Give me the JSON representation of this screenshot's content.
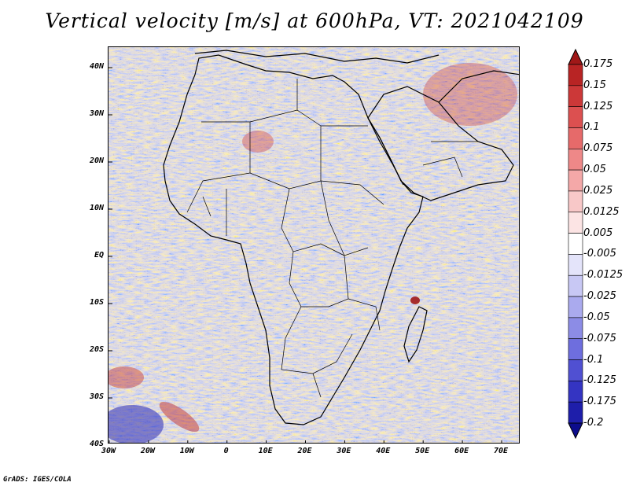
{
  "title": "Vertical velocity [m/s] at 600hPa, VT: 2021042109",
  "footer": "GrADS: IGES/COLA",
  "map": {
    "variable": "Vertical velocity",
    "units": "m/s",
    "level": "600hPa",
    "valid_time": "2021042109",
    "region": "Africa and Arabian Peninsula",
    "lon_range": [
      -30,
      75
    ],
    "lat_range": [
      -40,
      45
    ]
  },
  "lat_labels": [
    "40N",
    "30N",
    "20N",
    "10N",
    "EQ",
    "10S",
    "20S",
    "30S",
    "40S"
  ],
  "lon_labels": [
    "30W",
    "20W",
    "10W",
    "0",
    "10E",
    "20E",
    "30E",
    "40E",
    "50E",
    "60E",
    "70E"
  ],
  "colorbar": {
    "labels": [
      "0.175",
      "0.15",
      "0.125",
      "0.1",
      "0.075",
      "0.05",
      "0.025",
      "0.0125",
      "0.005",
      "-0.005",
      "-0.0125",
      "-0.025",
      "-0.05",
      "-0.075",
      "-0.1",
      "-0.125",
      "-0.175",
      "-0.2"
    ],
    "colors": [
      "#a01818",
      "#b82424",
      "#cc3838",
      "#dc5050",
      "#e66a6a",
      "#ee8888",
      "#f4a8a8",
      "#f8c8c8",
      "#fce4e4",
      "#ffffff",
      "#e4e4fa",
      "#c8c8f4",
      "#aaaaee",
      "#8c8ce6",
      "#6e6ede",
      "#5050d2",
      "#3434c2",
      "#1e1eaa",
      "#0c0c8c"
    ]
  }
}
